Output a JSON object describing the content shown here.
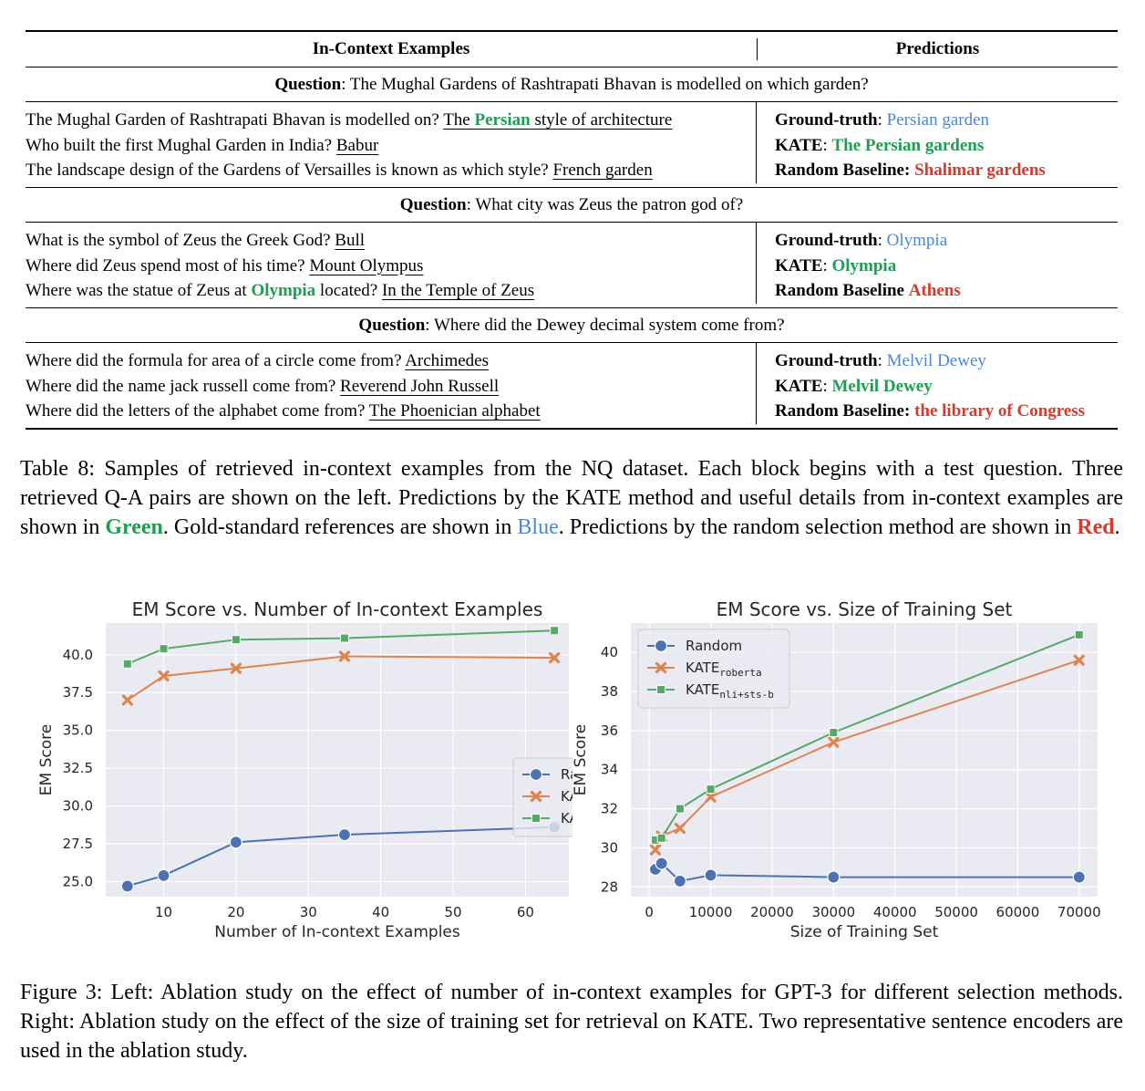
{
  "table": {
    "headers": [
      "In-Context Examples",
      "Predictions"
    ],
    "blocks": [
      {
        "question_label": "Question",
        "question": "The Mughal Gardens of Rashtrapati Bhavan is modelled on which garden?",
        "examples": [
          {
            "q": "The Mughal Garden of Rashtrapati Bhavan is modelled on?",
            "a_pre": "The ",
            "a_hl": "Persian",
            "a_post": " style of architecture"
          },
          {
            "q": "Who built the first Mughal Garden in India?",
            "a_pre": "Babur",
            "a_hl": "",
            "a_post": ""
          },
          {
            "q": "The landscape design of the Gardens of Versailles is known as which style?",
            "a_pre": "French garden",
            "a_hl": "",
            "a_post": ""
          }
        ],
        "predictions": {
          "gt_label": "Ground-truth",
          "gt": "Persian garden",
          "kate_label": "KATE",
          "kate": "The Persian gardens",
          "rand_label": "Random Baseline",
          "rand_sep": ":",
          "rand": "Shalimar gardens"
        }
      },
      {
        "question_label": "Question",
        "question": "What city was Zeus the patron god of?",
        "examples": [
          {
            "q_pre": "What is the symbol of Zeus the Greek God?",
            "q_hl": "",
            "q_post": "",
            "a": "Bull"
          },
          {
            "q_pre": "Where did Zeus spend most of his time?",
            "q_hl": "",
            "q_post": "",
            "a": "Mount Olympus"
          },
          {
            "q_pre": "Where was the statue of Zeus at ",
            "q_hl": "Olympia",
            "q_post": " located?",
            "a": "In the Temple of Zeus"
          }
        ],
        "predictions": {
          "gt_label": "Ground-truth",
          "gt": "Olympia",
          "kate_label": "KATE",
          "kate": "Olympia",
          "rand_label": "Random Baseline",
          "rand_sep": "",
          "rand": "Athens"
        }
      },
      {
        "question_label": "Question",
        "question": "Where did the Dewey decimal system come from?",
        "examples": [
          {
            "q": "Where did the formula for area of a circle come from?",
            "a": "Archimedes"
          },
          {
            "q": "Where did the name jack russell come from?",
            "a": "Reverend John Russell"
          },
          {
            "q": "Where did the letters of the alphabet come from?",
            "a": "The Phoenician alphabet"
          }
        ],
        "predictions": {
          "gt_label": "Ground-truth",
          "gt": "Melvil Dewey",
          "kate_label": "KATE",
          "kate": "Melvil Dewey",
          "rand_label": "Random Baseline",
          "rand_sep": ":",
          "rand": "the library of Congress"
        }
      }
    ]
  },
  "caption8": {
    "p1": "Table 8: Samples of retrieved in-context examples from the NQ dataset. Each block begins with a test question. Three retrieved Q-A pairs are shown on the left. Predictions by the KATE method and useful details from in-context examples are shown in ",
    "green": "Green",
    "p2": ". Gold-standard references are shown in ",
    "blue": "Blue",
    "p3": ". Predictions by the random selection method are shown in ",
    "red": "Red",
    "p4": "."
  },
  "caption3": "Figure 3: Left: Ablation study on the effect of number of in-context examples for GPT-3 for different selection methods. Right: Ablation study on the effect of the size of training set for retrieval on KATE. Two representative sentence encoders are used in the ablation study.",
  "chart_data": [
    {
      "type": "line",
      "title": "EM Score vs. Number of In-context Examples",
      "xlabel": "Number of In-context Examples",
      "ylabel": "EM Score",
      "xlim": [
        2,
        66
      ],
      "ylim": [
        24.0,
        42.1
      ],
      "xticks": [
        10,
        20,
        30,
        40,
        50,
        60
      ],
      "yticks": [
        25.0,
        27.5,
        30.0,
        32.5,
        35.0,
        37.5,
        40.0
      ],
      "ytick_decimals": 1,
      "grid": true,
      "legend_position": "center-right",
      "x": [
        5,
        10,
        20,
        35,
        64
      ],
      "series": [
        {
          "name": "Random",
          "sub": "",
          "values": [
            24.7,
            25.4,
            27.6,
            28.1,
            28.6
          ],
          "color": "#4c72b0",
          "marker": "circle"
        },
        {
          "name": "KATE",
          "sub": "roberta",
          "values": [
            37.0,
            38.6,
            39.1,
            39.9,
            39.8
          ],
          "color": "#dd8452",
          "marker": "x"
        },
        {
          "name": "KATE",
          "sub": "nli+sts-b",
          "values": [
            39.4,
            40.4,
            41.0,
            41.1,
            41.6
          ],
          "color": "#55a868",
          "marker": "square"
        }
      ]
    },
    {
      "type": "line",
      "title": "EM Score vs. Size of Training Set",
      "xlabel": "Size of Training Set",
      "ylabel": "EM Score",
      "xlim": [
        -3000,
        73000
      ],
      "ylim": [
        27.5,
        41.5
      ],
      "xticks": [
        0,
        10000,
        20000,
        30000,
        40000,
        50000,
        60000,
        70000
      ],
      "yticks": [
        28,
        30,
        32,
        34,
        36,
        38,
        40
      ],
      "ytick_decimals": 0,
      "grid": true,
      "legend_position": "top-left",
      "x": [
        1000,
        2000,
        5000,
        10000,
        30000,
        70000
      ],
      "series": [
        {
          "name": "Random",
          "sub": "",
          "values": [
            28.9,
            29.2,
            28.3,
            28.6,
            28.5,
            28.5
          ],
          "color": "#4c72b0",
          "marker": "circle"
        },
        {
          "name": "KATE",
          "sub": "roberta",
          "values": [
            29.9,
            30.6,
            31.0,
            32.6,
            35.4,
            39.6
          ],
          "color": "#dd8452",
          "marker": "x"
        },
        {
          "name": "KATE",
          "sub": "nli+sts-b",
          "values": [
            30.4,
            30.5,
            32.0,
            33.0,
            35.9,
            40.9
          ],
          "color": "#55a868",
          "marker": "square"
        }
      ]
    }
  ]
}
